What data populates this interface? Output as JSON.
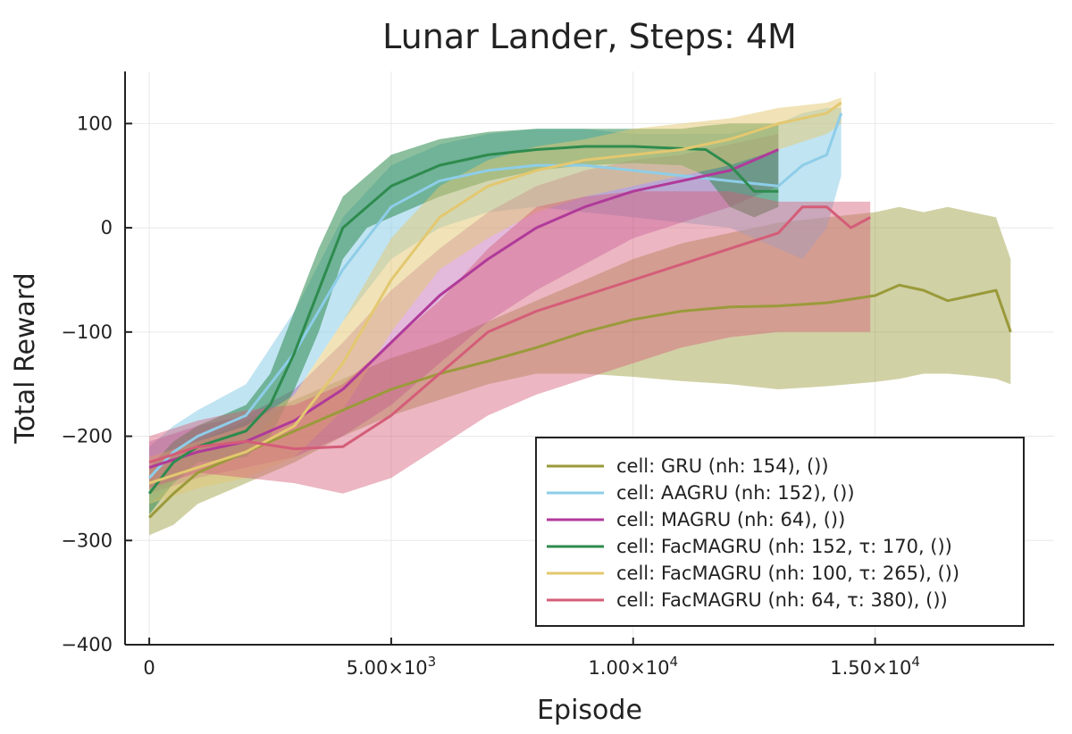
{
  "chart_data": {
    "type": "line",
    "title": "Lunar Lander, Steps: 4M",
    "xlabel": "Episode",
    "ylabel": "Total Reward",
    "xlim": [
      -500,
      18700
    ],
    "ylim": [
      -400,
      150
    ],
    "x_ticks": [
      0,
      5000,
      10000,
      15000
    ],
    "x_tick_labels": [
      {
        "base": "0",
        "exp": ""
      },
      {
        "base": "5.00×10",
        "exp": "3"
      },
      {
        "base": "1.00×10",
        "exp": "4"
      },
      {
        "base": "1.50×10",
        "exp": "4"
      }
    ],
    "y_ticks": [
      100,
      0,
      -100,
      -200,
      -300,
      -400
    ],
    "y_tick_labels": [
      "100",
      "0",
      "−100",
      "−200",
      "−300",
      "−400"
    ],
    "grid": true,
    "legend_position": "bottom-right",
    "series": [
      {
        "name": "cell: GRU (nh: 154), ())",
        "color": "#9a9a3a",
        "band_opacity": 0.45,
        "x": [
          0,
          500,
          1000,
          2000,
          3000,
          4000,
          5000,
          6000,
          7000,
          8000,
          9000,
          10000,
          11000,
          12000,
          13000,
          14000,
          15000,
          15500,
          16000,
          16500,
          17000,
          17500,
          17800
        ],
        "y": [
          -278,
          -255,
          -235,
          -215,
          -195,
          -175,
          -155,
          -140,
          -128,
          -115,
          -100,
          -88,
          -80,
          -76,
          -75,
          -72,
          -65,
          -55,
          -60,
          -70,
          -65,
          -60,
          -100
        ],
        "lower": [
          -295,
          -285,
          -265,
          -245,
          -225,
          -200,
          -180,
          -165,
          -150,
          -140,
          -140,
          -143,
          -147,
          -150,
          -155,
          -152,
          -148,
          -145,
          -140,
          -140,
          -142,
          -145,
          -150
        ],
        "upper": [
          -255,
          -225,
          -205,
          -185,
          -165,
          -145,
          -125,
          -110,
          -90,
          -70,
          -50,
          -30,
          -15,
          -5,
          5,
          10,
          15,
          20,
          15,
          20,
          15,
          10,
          -30
        ]
      },
      {
        "name": "cell: AAGRU (nh: 152), ())",
        "color": "#8ecde8",
        "band_opacity": 0.55,
        "x": [
          0,
          500,
          1000,
          2000,
          3000,
          4000,
          5000,
          6000,
          7000,
          8000,
          9000,
          10000,
          11000,
          12000,
          13000,
          13500,
          14000,
          14300
        ],
        "y": [
          -240,
          -215,
          -200,
          -180,
          -120,
          -40,
          20,
          45,
          55,
          60,
          60,
          55,
          50,
          45,
          40,
          60,
          70,
          110
        ],
        "lower": [
          -265,
          -245,
          -230,
          -210,
          -160,
          -90,
          -30,
          0,
          15,
          20,
          15,
          10,
          5,
          0,
          -20,
          -30,
          0,
          50
        ],
        "upper": [
          -210,
          -190,
          -175,
          -150,
          -80,
          10,
          60,
          80,
          90,
          95,
          95,
          90,
          90,
          90,
          100,
          110,
          115,
          115
        ]
      },
      {
        "name": "cell: MAGRU (nh: 64), ())",
        "color": "#b03a9a",
        "band_opacity": 0.35,
        "x": [
          0,
          1000,
          2000,
          3000,
          4000,
          5000,
          6000,
          7000,
          8000,
          9000,
          10000,
          11000,
          12000,
          12500,
          13000
        ],
        "y": [
          -230,
          -215,
          -205,
          -185,
          -155,
          -110,
          -65,
          -30,
          0,
          20,
          35,
          45,
          55,
          65,
          75
        ],
        "lower": [
          -255,
          -240,
          -230,
          -220,
          -200,
          -170,
          -130,
          -90,
          -60,
          -35,
          -10,
          5,
          20,
          30,
          40
        ],
        "upper": [
          -205,
          -190,
          -180,
          -155,
          -110,
          -60,
          -20,
          15,
          40,
          55,
          65,
          70,
          80,
          85,
          90
        ]
      },
      {
        "name": "cell: FacMAGRU (nh: 152, τ: 170, ())",
        "color": "#2e8b4e",
        "band_opacity": 0.55,
        "x": [
          0,
          500,
          1000,
          2000,
          2500,
          3000,
          3500,
          4000,
          4500,
          5000,
          6000,
          7000,
          8000,
          9000,
          10000,
          11000,
          11500,
          12000,
          12500,
          13000
        ],
        "y": [
          -255,
          -225,
          -210,
          -195,
          -170,
          -120,
          -60,
          0,
          20,
          40,
          60,
          70,
          75,
          78,
          78,
          76,
          75,
          60,
          35,
          35
        ],
        "lower": [
          -275,
          -245,
          -225,
          -220,
          -200,
          -155,
          -100,
          -30,
          0,
          10,
          30,
          45,
          55,
          60,
          62,
          60,
          50,
          20,
          10,
          20
        ],
        "upper": [
          -230,
          -205,
          -190,
          -170,
          -140,
          -80,
          -20,
          30,
          50,
          70,
          85,
          92,
          95,
          95,
          95,
          95,
          98,
          100,
          100,
          100
        ]
      },
      {
        "name": "cell: FacMAGRU (nh: 100, τ: 265), ())",
        "color": "#e3c870",
        "band_opacity": 0.5,
        "x": [
          0,
          1000,
          2000,
          3000,
          4000,
          5000,
          6000,
          7000,
          8000,
          9000,
          10000,
          11000,
          12000,
          13000,
          14000,
          14300
        ],
        "y": [
          -245,
          -230,
          -215,
          -190,
          -130,
          -50,
          10,
          40,
          55,
          65,
          70,
          75,
          85,
          100,
          110,
          120
        ],
        "lower": [
          -265,
          -250,
          -240,
          -220,
          -175,
          -100,
          -40,
          -10,
          15,
          30,
          40,
          50,
          60,
          75,
          90,
          100
        ],
        "upper": [
          -220,
          -205,
          -190,
          -160,
          -90,
          -10,
          40,
          65,
          78,
          85,
          95,
          100,
          105,
          115,
          120,
          125
        ]
      },
      {
        "name": "cell: FacMAGRU (nh: 64, τ: 380), ())",
        "color": "#d45d78",
        "band_opacity": 0.45,
        "x": [
          0,
          1000,
          2000,
          3000,
          4000,
          5000,
          6000,
          7000,
          8000,
          9000,
          10000,
          11000,
          12000,
          13000,
          13500,
          14000,
          14500,
          14900
        ],
        "y": [
          -225,
          -210,
          -205,
          -212,
          -210,
          -180,
          -140,
          -100,
          -80,
          -65,
          -50,
          -35,
          -20,
          -5,
          20,
          20,
          0,
          10
        ],
        "lower": [
          -250,
          -235,
          -240,
          -245,
          -255,
          -240,
          -210,
          -180,
          -160,
          -145,
          -130,
          -115,
          -105,
          -100,
          -100,
          -100,
          -100,
          -100
        ],
        "upper": [
          -200,
          -185,
          -175,
          -170,
          -150,
          -110,
          -70,
          -20,
          20,
          30,
          35,
          35,
          35,
          25,
          25,
          25,
          25,
          25
        ]
      }
    ]
  }
}
